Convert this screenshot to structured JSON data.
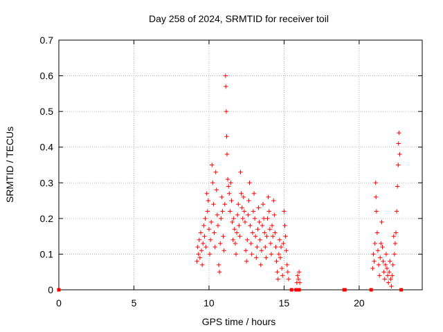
{
  "colors": {
    "series": "#ff0000",
    "axis": "#000000",
    "grid": "#a0a0a0",
    "background": "#ffffff"
  },
  "chart_data": {
    "type": "scatter",
    "title": "Day 258 of 2024, SRMTID for receiver toil",
    "xlabel": "GPS time / hours",
    "ylabel": "SRMTID / TECUs",
    "xlim": [
      0,
      24.2
    ],
    "ylim": [
      0,
      0.7
    ],
    "xticks": [
      0,
      5,
      10,
      15,
      20
    ],
    "yticks": [
      0,
      0.1,
      0.2,
      0.3,
      0.4,
      0.5,
      0.6,
      0.7
    ],
    "xtick_labels": [
      "0",
      "5",
      "10",
      "15",
      "20"
    ],
    "ytick_labels": [
      "0",
      "0.1",
      "0.2",
      "0.3",
      "0.4",
      "0.5",
      "0.6",
      "0.7"
    ],
    "grid": true,
    "marker": "plus",
    "series": [
      {
        "name": "SRMTID",
        "points": [
          [
            0.0,
            0.0
          ],
          [
            9.2,
            0.08
          ],
          [
            9.25,
            0.12
          ],
          [
            9.3,
            0.1
          ],
          [
            9.35,
            0.14
          ],
          [
            9.4,
            0.09
          ],
          [
            9.45,
            0.16
          ],
          [
            9.5,
            0.11
          ],
          [
            9.55,
            0.07
          ],
          [
            9.6,
            0.13
          ],
          [
            9.65,
            0.18
          ],
          [
            9.7,
            0.15
          ],
          [
            9.75,
            0.2
          ],
          [
            9.8,
            0.12
          ],
          [
            9.85,
            0.27
          ],
          [
            9.9,
            0.22
          ],
          [
            9.95,
            0.25
          ],
          [
            10.0,
            0.17
          ],
          [
            10.05,
            0.1
          ],
          [
            10.1,
            0.14
          ],
          [
            10.15,
            0.19
          ],
          [
            10.2,
            0.35
          ],
          [
            10.25,
            0.3
          ],
          [
            10.3,
            0.24
          ],
          [
            10.35,
            0.16
          ],
          [
            10.4,
            0.12
          ],
          [
            10.45,
            0.33
          ],
          [
            10.5,
            0.28
          ],
          [
            10.55,
            0.21
          ],
          [
            10.6,
            0.18
          ],
          [
            10.65,
            0.07
          ],
          [
            10.7,
            0.05
          ],
          [
            10.75,
            0.13
          ],
          [
            10.8,
            0.2
          ],
          [
            10.85,
            0.26
          ],
          [
            10.9,
            0.22
          ],
          [
            10.95,
            0.15
          ],
          [
            11.0,
            0.11
          ],
          [
            11.05,
            0.24
          ],
          [
            11.1,
            0.6
          ],
          [
            11.12,
            0.57
          ],
          [
            11.15,
            0.5
          ],
          [
            11.18,
            0.43
          ],
          [
            11.2,
            0.38
          ],
          [
            11.25,
            0.31
          ],
          [
            11.3,
            0.29
          ],
          [
            11.35,
            0.27
          ],
          [
            11.4,
            0.22
          ],
          [
            11.45,
            0.3
          ],
          [
            11.5,
            0.25
          ],
          [
            11.55,
            0.19
          ],
          [
            11.6,
            0.14
          ],
          [
            11.65,
            0.2
          ],
          [
            11.7,
            0.17
          ],
          [
            11.75,
            0.13
          ],
          [
            11.8,
            0.1
          ],
          [
            11.85,
            0.16
          ],
          [
            11.9,
            0.21
          ],
          [
            11.95,
            0.24
          ],
          [
            12.0,
            0.18
          ],
          [
            12.05,
            0.15
          ],
          [
            12.1,
            0.33
          ],
          [
            12.15,
            0.27
          ],
          [
            12.2,
            0.23
          ],
          [
            12.25,
            0.2
          ],
          [
            12.3,
            0.26
          ],
          [
            12.35,
            0.22
          ],
          [
            12.4,
            0.19
          ],
          [
            12.45,
            0.11
          ],
          [
            12.5,
            0.08
          ],
          [
            12.55,
            0.14
          ],
          [
            12.6,
            0.21
          ],
          [
            12.65,
            0.25
          ],
          [
            12.7,
            0.3
          ],
          [
            12.75,
            0.18
          ],
          [
            12.8,
            0.13
          ],
          [
            12.85,
            0.1
          ],
          [
            12.9,
            0.16
          ],
          [
            12.95,
            0.22
          ],
          [
            13.0,
            0.27
          ],
          [
            13.05,
            0.2
          ],
          [
            13.1,
            0.15
          ],
          [
            13.15,
            0.09
          ],
          [
            13.2,
            0.12
          ],
          [
            13.25,
            0.17
          ],
          [
            13.3,
            0.23
          ],
          [
            13.35,
            0.19
          ],
          [
            13.4,
            0.14
          ],
          [
            13.45,
            0.07
          ],
          [
            13.5,
            0.11
          ],
          [
            13.55,
            0.18
          ],
          [
            13.6,
            0.24
          ],
          [
            13.65,
            0.2
          ],
          [
            13.7,
            0.16
          ],
          [
            13.75,
            0.12
          ],
          [
            13.8,
            0.09
          ],
          [
            13.85,
            0.15
          ],
          [
            13.9,
            0.2
          ],
          [
            13.95,
            0.26
          ],
          [
            14.0,
            0.22
          ],
          [
            14.05,
            0.17
          ],
          [
            14.1,
            0.13
          ],
          [
            14.15,
            0.1
          ],
          [
            14.2,
            0.18
          ],
          [
            14.25,
            0.15
          ],
          [
            14.3,
            0.25
          ],
          [
            14.35,
            0.21
          ],
          [
            14.4,
            0.16
          ],
          [
            14.45,
            0.12
          ],
          [
            14.5,
            0.08
          ],
          [
            14.55,
            0.05
          ],
          [
            14.6,
            0.03
          ],
          [
            14.65,
            0.1
          ],
          [
            14.7,
            0.14
          ],
          [
            14.75,
            0.09
          ],
          [
            14.8,
            0.12
          ],
          [
            14.85,
            0.06
          ],
          [
            14.9,
            0.04
          ],
          [
            14.95,
            0.13
          ],
          [
            15.0,
            0.22
          ],
          [
            15.05,
            0.18
          ],
          [
            15.1,
            0.15
          ],
          [
            15.15,
            0.11
          ],
          [
            15.2,
            0.07
          ],
          [
            15.25,
            0.05
          ],
          [
            15.3,
            0.03
          ],
          [
            15.5,
            0.0
          ],
          [
            15.8,
            0.0
          ],
          [
            16.0,
            0.0
          ],
          [
            15.85,
            0.02
          ],
          [
            15.9,
            0.04
          ],
          [
            15.95,
            0.03
          ],
          [
            16.0,
            0.05
          ],
          [
            16.05,
            0.02
          ],
          [
            19.0,
            0.0
          ],
          [
            19.05,
            0.0
          ],
          [
            20.8,
            0.0
          ],
          [
            20.9,
            0.06
          ],
          [
            20.95,
            0.1
          ],
          [
            21.0,
            0.08
          ],
          [
            21.05,
            0.13
          ],
          [
            21.1,
            0.3
          ],
          [
            21.12,
            0.26
          ],
          [
            21.15,
            0.22
          ],
          [
            21.2,
            0.16
          ],
          [
            21.25,
            0.11
          ],
          [
            21.3,
            0.07
          ],
          [
            21.35,
            0.04
          ],
          [
            21.4,
            0.09
          ],
          [
            21.45,
            0.13
          ],
          [
            21.5,
            0.19
          ],
          [
            21.55,
            0.12
          ],
          [
            21.6,
            0.08
          ],
          [
            21.65,
            0.05
          ],
          [
            21.7,
            0.03
          ],
          [
            21.75,
            0.07
          ],
          [
            21.8,
            0.1
          ],
          [
            21.85,
            0.06
          ],
          [
            21.9,
            0.04
          ],
          [
            21.95,
            0.02
          ],
          [
            22.0,
            0.05
          ],
          [
            22.05,
            0.08
          ],
          [
            22.1,
            0.03
          ],
          [
            22.15,
            0.01
          ],
          [
            22.2,
            0.04
          ],
          [
            22.25,
            0.07
          ],
          [
            22.3,
            0.15
          ],
          [
            22.35,
            0.1
          ],
          [
            22.4,
            0.13
          ],
          [
            22.45,
            0.16
          ],
          [
            22.5,
            0.22
          ],
          [
            22.55,
            0.29
          ],
          [
            22.6,
            0.35
          ],
          [
            22.62,
            0.41
          ],
          [
            22.65,
            0.44
          ],
          [
            22.7,
            0.38
          ],
          [
            22.8,
            0.0
          ]
        ]
      }
    ]
  }
}
